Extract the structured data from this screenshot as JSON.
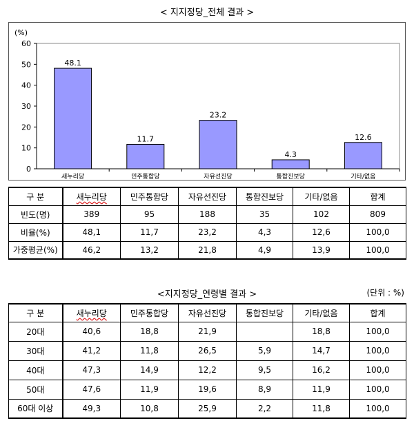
{
  "chart_title": "< 지지정당_전체 결과 >",
  "chart_data": {
    "type": "bar",
    "ylabel": "(%)",
    "ylim": [
      0,
      60
    ],
    "yticks": [
      0,
      10,
      20,
      30,
      40,
      50,
      60
    ],
    "categories": [
      "새누리당",
      "민주통합당",
      "자유선진당",
      "통합진보당",
      "기타/없음"
    ],
    "values": [
      48.1,
      11.7,
      23.2,
      4.3,
      12.6
    ],
    "value_labels": [
      "48.1",
      "11.7",
      "23.2",
      "4.3",
      "12.6"
    ],
    "bar_color": "#9999ff",
    "grid": false
  },
  "overall_table": {
    "headers": [
      "구  분",
      "새누리당",
      "민주통합당",
      "자유선진당",
      "통합진보당",
      "기타/없음",
      "합계"
    ],
    "rows": [
      [
        "빈도(명)",
        "389",
        "95",
        "188",
        "35",
        "102",
        "809"
      ],
      [
        "비율(%)",
        "48,1",
        "11,7",
        "23,2",
        "4,3",
        "12,6",
        "100,0"
      ],
      [
        "가중평균(%)",
        "46,2",
        "13,2",
        "21,8",
        "4,9",
        "13,9",
        "100,0"
      ]
    ]
  },
  "age_title": "<지지정당_연령별 결과 >",
  "age_unit": "(단위 : %)",
  "age_table": {
    "headers": [
      "구  분",
      "새누리당",
      "민주통합당",
      "자유선진당",
      "통합진보당",
      "기타/없음",
      "합계"
    ],
    "rows": [
      [
        "20대",
        "40,6",
        "18,8",
        "21,9",
        "",
        "18,8",
        "100,0"
      ],
      [
        "30대",
        "41,2",
        "11,8",
        "26,5",
        "5,9",
        "14,7",
        "100,0"
      ],
      [
        "40대",
        "47,3",
        "14,9",
        "12,2",
        "9,5",
        "16,2",
        "100,0"
      ],
      [
        "50대",
        "47,6",
        "11,9",
        "19,6",
        "8,9",
        "11,9",
        "100,0"
      ],
      [
        "60대 이상",
        "49,3",
        "10,8",
        "25,9",
        "2,2",
        "11,8",
        "100,0"
      ]
    ]
  }
}
